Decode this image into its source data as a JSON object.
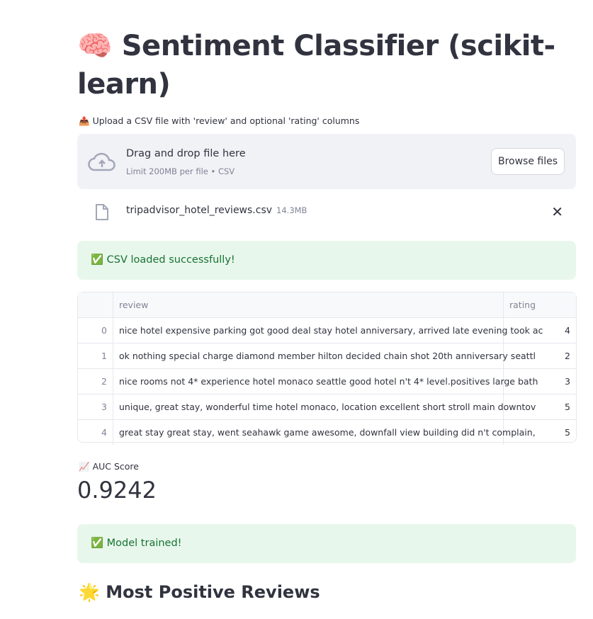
{
  "header": {
    "icon": "🧠",
    "title": "Sentiment Classifier (scikit-learn)"
  },
  "uploader": {
    "icon": "📤",
    "label": "Upload a CSV file with 'review' and optional 'rating' columns",
    "drop_title": "Drag and drop file here",
    "drop_subtitle": "Limit 200MB per file • CSV",
    "browse_label": "Browse files",
    "file": {
      "name": "tripadvisor_hotel_reviews.csv",
      "size": "14.3MB"
    }
  },
  "alerts": {
    "loaded": "✅ CSV loaded successfully!",
    "trained": "✅ Model trained!"
  },
  "table": {
    "columns": [
      "",
      "review",
      "rating"
    ],
    "rows": [
      {
        "index": "0",
        "review": "nice hotel expensive parking got good deal stay hotel anniversary, arrived late evening took ac",
        "rating": "4"
      },
      {
        "index": "1",
        "review": "ok nothing special charge diamond member hilton decided chain shot 20th anniversary seattl",
        "rating": "2"
      },
      {
        "index": "2",
        "review": "nice rooms not 4* experience hotel monaco seattle good hotel n't 4* level.positives large bath",
        "rating": "3"
      },
      {
        "index": "3",
        "review": "unique, great stay, wonderful time hotel monaco, location excellent short stroll main downtov",
        "rating": "5"
      },
      {
        "index": "4",
        "review": "great stay great stay, went seahawk game awesome, downfall view building did n't complain,",
        "rating": "5"
      }
    ]
  },
  "metric": {
    "icon": "📈",
    "label": "AUC Score",
    "value": "0.9242"
  },
  "section": {
    "icon": "🌟",
    "title": "Most Positive Reviews"
  }
}
